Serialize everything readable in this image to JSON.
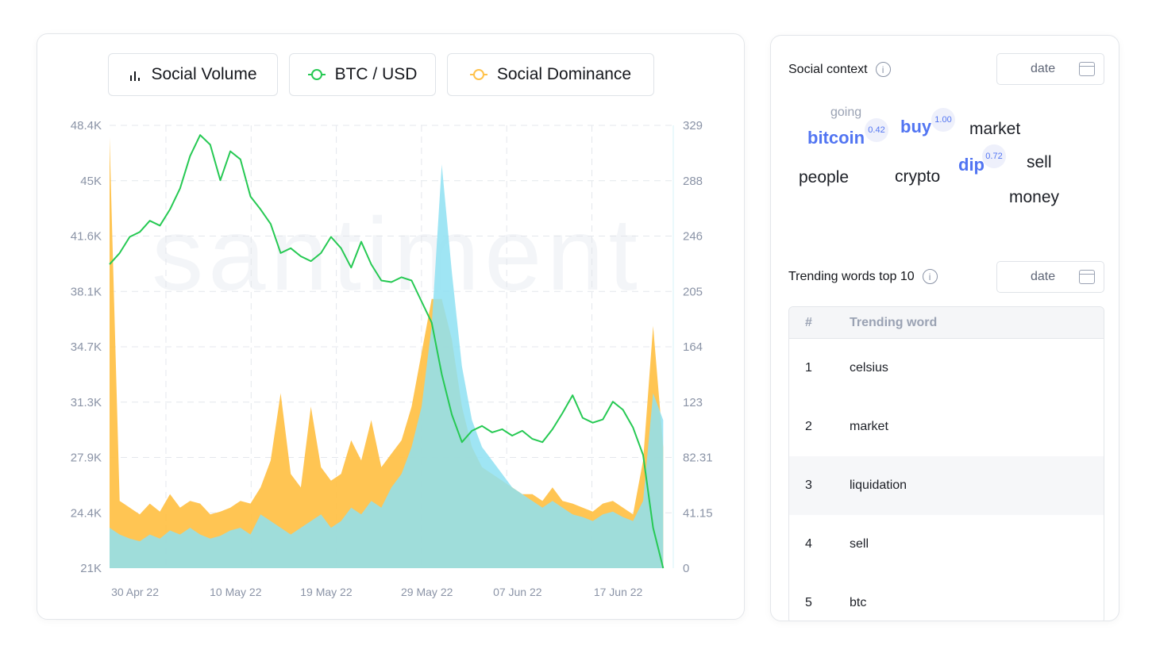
{
  "legend": [
    {
      "label": "Social Volume",
      "icon": "bar-chart-icon",
      "color": "#15171c"
    },
    {
      "label": "BTC / USD",
      "icon": "ring-icon",
      "color": "#26c953"
    },
    {
      "label": "Social Dominance",
      "icon": "ring-icon",
      "color": "#ffc24a"
    }
  ],
  "watermark": "santiment",
  "chart_data": {
    "type": "line",
    "xlim": [
      "2022-04-27",
      "2022-06-22"
    ],
    "x_tick_labels": [
      "30 Apr 22",
      "10 May 22",
      "19 May 22",
      "29 May 22",
      "07 Jun 22",
      "17 Jun 22"
    ],
    "x_tick_dates": [
      "2022-04-30",
      "2022-05-10",
      "2022-05-19",
      "2022-05-29",
      "2022-06-07",
      "2022-06-17"
    ],
    "left_axis": {
      "ylim": [
        21000,
        48400
      ],
      "tick_labels": [
        "48.4K",
        "45K",
        "41.6K",
        "38.1K",
        "34.7K",
        "31.3K",
        "27.9K",
        "24.4K",
        "21K"
      ]
    },
    "right_axis": {
      "ylim": [
        0,
        329
      ],
      "tick_labels": [
        "329",
        "288",
        "246",
        "205",
        "164",
        "123",
        "82.31",
        "41.15",
        "0"
      ]
    },
    "grid": true,
    "colors": {
      "btc": "#26c953",
      "volume": "#8ee0f2",
      "dominance": "#ffc24a"
    },
    "series": [
      {
        "name": "BTC / USD",
        "axis": "left",
        "type": "line",
        "values": [
          39800,
          40500,
          41500,
          41800,
          42500,
          42200,
          43200,
          44500,
          46500,
          47800,
          47200,
          45000,
          46800,
          46300,
          44000,
          43200,
          42300,
          40500,
          40800,
          40300,
          40000,
          40500,
          41500,
          40800,
          39600,
          41200,
          39800,
          38800,
          38700,
          39000,
          38800,
          37500,
          36200,
          33000,
          30500,
          28800,
          29500,
          29800,
          29400,
          29600,
          29200,
          29500,
          29000,
          28800,
          29600,
          30600,
          31700,
          30300,
          30000,
          30200,
          31300,
          30800,
          29700,
          28000,
          23500,
          21000
        ]
      },
      {
        "name": "Social Dominance",
        "axis": "right",
        "type": "area",
        "values": [
          320,
          50,
          45,
          40,
          48,
          42,
          55,
          45,
          50,
          48,
          40,
          42,
          45,
          50,
          48,
          60,
          80,
          130,
          70,
          60,
          120,
          75,
          65,
          70,
          95,
          80,
          110,
          75,
          85,
          95,
          120,
          160,
          200,
          200,
          170,
          120,
          90,
          75,
          70,
          65,
          60,
          55,
          55,
          50,
          60,
          50,
          48,
          45,
          42,
          48,
          50,
          45,
          40,
          80,
          180,
          90
        ]
      },
      {
        "name": "Social Volume",
        "axis": "right",
        "type": "area",
        "values": [
          30,
          25,
          22,
          20,
          25,
          22,
          28,
          25,
          30,
          25,
          22,
          24,
          28,
          30,
          25,
          40,
          35,
          30,
          25,
          30,
          35,
          40,
          30,
          35,
          45,
          40,
          50,
          45,
          60,
          70,
          90,
          120,
          180,
          300,
          220,
          150,
          110,
          90,
          80,
          70,
          60,
          55,
          50,
          45,
          50,
          45,
          40,
          38,
          35,
          40,
          42,
          38,
          35,
          50,
          130,
          110
        ]
      }
    ]
  },
  "social_context": {
    "title": "Social context",
    "date_placeholder": "date",
    "words": [
      {
        "text": "going",
        "style": "faint"
      },
      {
        "text": "bitcoin",
        "style": "hl",
        "score": "0.42"
      },
      {
        "text": "buy",
        "style": "hl",
        "score": "1.00"
      },
      {
        "text": "market",
        "style": ""
      },
      {
        "text": "dip",
        "style": "hl",
        "score": "0.72"
      },
      {
        "text": "sell",
        "style": ""
      },
      {
        "text": "people",
        "style": ""
      },
      {
        "text": "crypto",
        "style": ""
      },
      {
        "text": "money",
        "style": ""
      }
    ]
  },
  "trending": {
    "title": "Trending words top 10",
    "date_placeholder": "date",
    "columns": [
      "#",
      "Trending word"
    ],
    "rows": [
      {
        "rank": "1",
        "word": "celsius"
      },
      {
        "rank": "2",
        "word": "market"
      },
      {
        "rank": "3",
        "word": "liquidation"
      },
      {
        "rank": "4",
        "word": "sell"
      },
      {
        "rank": "5",
        "word": "btc"
      }
    ]
  }
}
